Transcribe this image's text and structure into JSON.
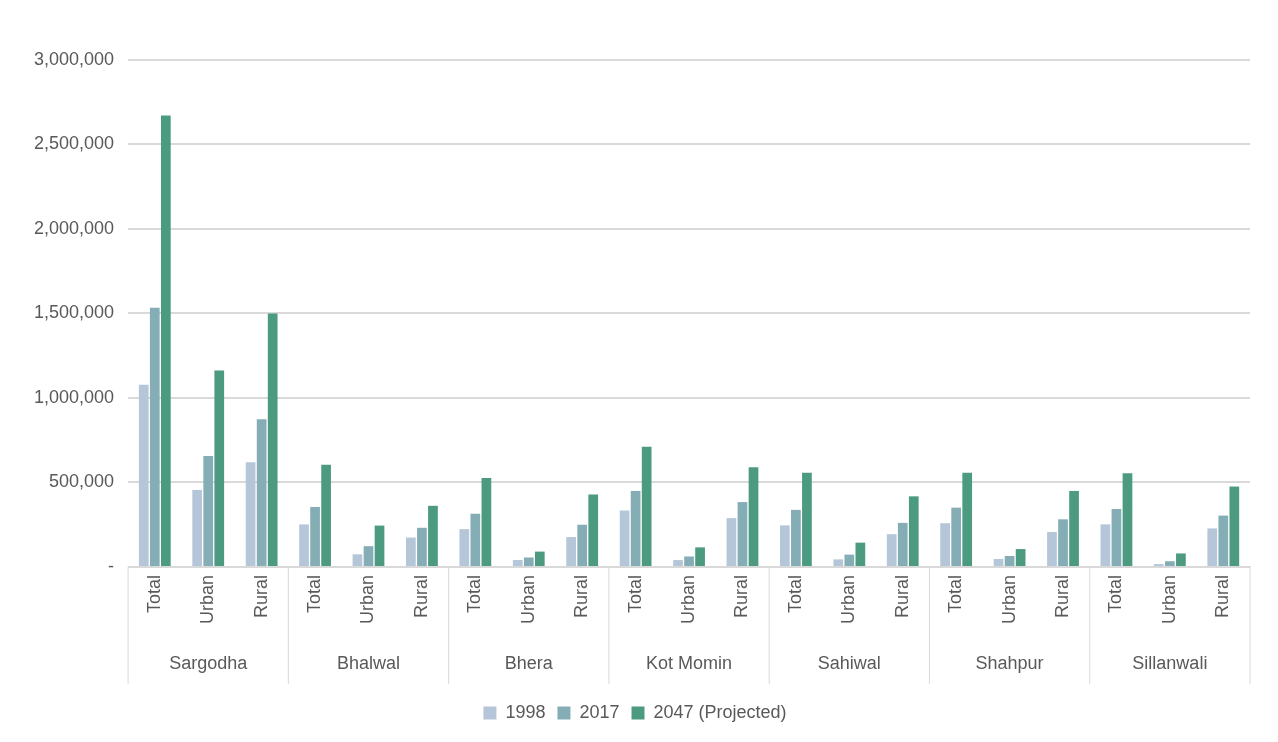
{
  "chart_data": {
    "type": "bar",
    "categories": [
      "Total",
      "Urban",
      "Rural",
      "Total",
      "Urban",
      "Rural",
      "Total",
      "Urban",
      "Rural",
      "Total",
      "Urban",
      "Rural",
      "Total",
      "Urban",
      "Rural",
      "Total",
      "Urban",
      "Rural",
      "Total",
      "Urban",
      "Rural"
    ],
    "annotations": [
      "Sargodha",
      "Bhalwal",
      "Bhera",
      "Kot Momin",
      "Sahiwal",
      "Shahpur",
      "Sillanwali"
    ],
    "series": [
      {
        "name": "1998",
        "color": "#b4c6d7",
        "values": [
          1078000,
          456000,
          620000,
          252000,
          75000,
          174000,
          224000,
          41000,
          177000,
          334000,
          41000,
          289000,
          246000,
          45000,
          194000,
          259000,
          47000,
          207000,
          252000,
          17000,
          228000
        ]
      },
      {
        "name": "2017",
        "color": "#84adb5",
        "values": [
          1534000,
          656000,
          874000,
          355000,
          123000,
          232000,
          315000,
          56000,
          250000,
          450000,
          62000,
          384000,
          338000,
          73000,
          261000,
          351000,
          65000,
          282000,
          343000,
          34000,
          304000
        ]
      },
      {
        "name": "2047 (Projected)",
        "color": "#4c9b80",
        "values": [
          2671000,
          1162000,
          1500000,
          605000,
          245000,
          362000,
          526000,
          91000,
          429000,
          711000,
          116000,
          590000,
          558000,
          144000,
          418000,
          558000,
          106000,
          450000,
          554000,
          80000,
          476000
        ]
      }
    ],
    "ylim": [
      0,
      3000000
    ],
    "yticks": [
      {
        "value": 0,
        "label": "-"
      },
      {
        "value": 500000,
        "label": "500,000"
      },
      {
        "value": 1000000,
        "label": "1,000,000"
      },
      {
        "value": 1500000,
        "label": "1,500,000"
      },
      {
        "value": 2000000,
        "label": "2,000,000"
      },
      {
        "value": 2500000,
        "label": "2,500,000"
      },
      {
        "value": 3000000,
        "label": "3,000,000"
      }
    ],
    "grid": "y",
    "legend": "bottom"
  }
}
